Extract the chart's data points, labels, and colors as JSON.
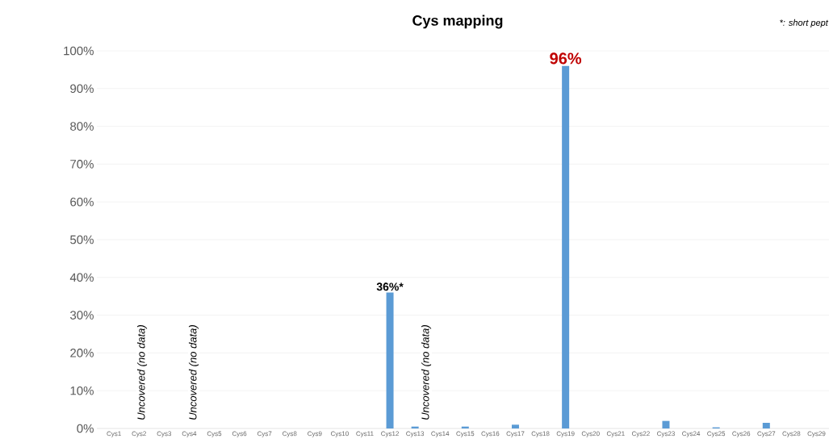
{
  "chart_data": {
    "type": "bar",
    "title": "Cys mapping",
    "categories": [
      "Cys1",
      "Cys2",
      "Cys3",
      "Cys4",
      "Cys5",
      "Cys6",
      "Cys7",
      "Cys8",
      "Cys9",
      "Cys10",
      "Cys11",
      "Cys12",
      "Cys13",
      "Cys14",
      "Cys15",
      "Cys16",
      "Cys17",
      "Cys18",
      "Cys19",
      "Cys20",
      "Cys21",
      "Cys22",
      "Cys23",
      "Cys24",
      "Cys25",
      "Cys26",
      "Cys27",
      "Cys28",
      "Cys29"
    ],
    "values": [
      0,
      null,
      0,
      null,
      0,
      0,
      0,
      0,
      0,
      0,
      0,
      36,
      0.5,
      null,
      0.5,
      0,
      1,
      0,
      96,
      0,
      0,
      0,
      2,
      0,
      0.3,
      0,
      1.5,
      0,
      0
    ],
    "value_labels": [
      null,
      null,
      null,
      null,
      null,
      null,
      null,
      null,
      null,
      null,
      null,
      "36%*",
      null,
      null,
      null,
      null,
      null,
      null,
      "96%",
      null,
      null,
      null,
      null,
      null,
      null,
      null,
      null,
      null,
      null
    ],
    "color": "#5b9bd5",
    "ylim": [
      0,
      100
    ],
    "yticks": [
      {
        "value": 0,
        "label": "0%"
      },
      {
        "value": 10,
        "label": "10%"
      },
      {
        "value": 20,
        "label": "20%"
      },
      {
        "value": 30,
        "label": "30%"
      },
      {
        "value": 40,
        "label": "40%"
      },
      {
        "value": 50,
        "label": "50%"
      },
      {
        "value": 60,
        "label": "60%"
      },
      {
        "value": 70,
        "label": "70%"
      },
      {
        "value": 80,
        "label": "80%"
      },
      {
        "value": 90,
        "label": "90%"
      },
      {
        "value": 100,
        "label": "100%"
      }
    ],
    "grid": "y",
    "annotations": [
      "Uncovered (no data)",
      "Uncovered (no data)",
      "Uncovered (no data)",
      "*: short pept"
    ]
  }
}
